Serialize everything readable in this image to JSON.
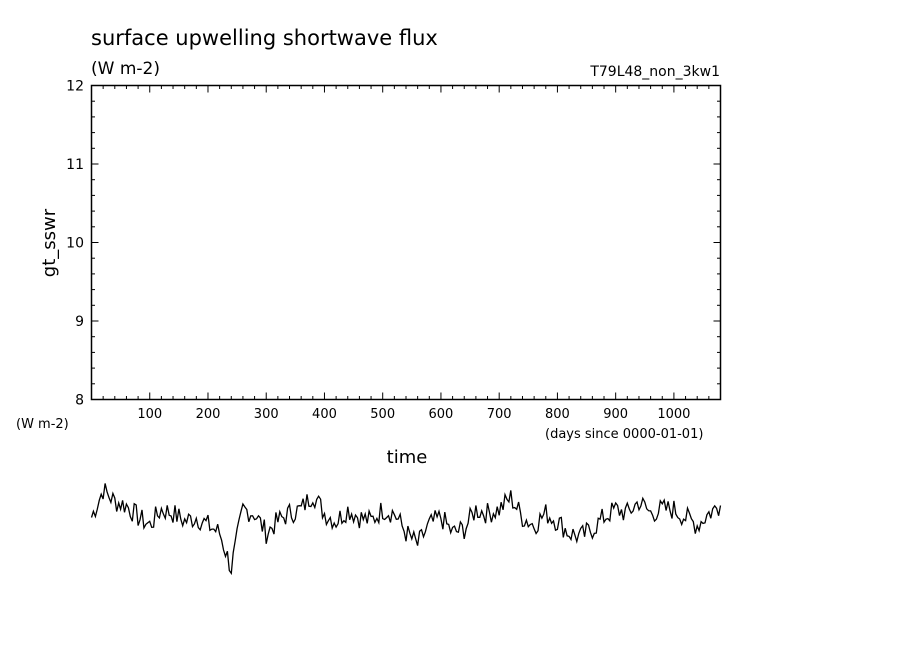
{
  "chart_data": {
    "type": "line",
    "title": "surface upwelling shortwave flux",
    "units": "(W m-2)",
    "experiment": "T79L48_non_3kw1",
    "ylabel": "gt_sswr",
    "xlabel": "time",
    "x_units": "(days since 0000-01-01)",
    "y_bottom_units": "(W m-2)",
    "xlim": [
      0,
      1080
    ],
    "ylim": [
      8,
      12
    ],
    "x_ticks": [
      100,
      200,
      300,
      400,
      500,
      600,
      700,
      800,
      900,
      1000
    ],
    "x_tick_labels": [
      "100",
      "200",
      "300",
      "400",
      "500",
      "600",
      "700",
      "800",
      "900",
      "1000"
    ],
    "y_ticks": [
      8,
      9,
      10,
      11,
      12
    ],
    "y_tick_labels": [
      "8",
      "9",
      "10",
      "11",
      "12"
    ],
    "grid": false,
    "series": [
      {
        "values": [
          [
            0,
            6.5
          ],
          [
            20,
            6.85
          ],
          [
            40,
            6.7
          ],
          [
            60,
            6.65
          ],
          [
            80,
            6.5
          ],
          [
            100,
            6.4
          ],
          [
            120,
            6.6
          ],
          [
            140,
            6.55
          ],
          [
            160,
            6.45
          ],
          [
            180,
            6.5
          ],
          [
            200,
            6.4
          ],
          [
            220,
            6.3
          ],
          [
            240,
            5.85
          ],
          [
            260,
            6.6
          ],
          [
            280,
            6.55
          ],
          [
            300,
            6.3
          ],
          [
            320,
            6.45
          ],
          [
            340,
            6.55
          ],
          [
            360,
            6.6
          ],
          [
            380,
            6.8
          ],
          [
            400,
            6.55
          ],
          [
            420,
            6.45
          ],
          [
            440,
            6.6
          ],
          [
            460,
            6.5
          ],
          [
            480,
            6.45
          ],
          [
            500,
            6.6
          ],
          [
            520,
            6.55
          ],
          [
            540,
            6.3
          ],
          [
            560,
            6.15
          ],
          [
            580,
            6.4
          ],
          [
            600,
            6.5
          ],
          [
            620,
            6.3
          ],
          [
            640,
            6.35
          ],
          [
            660,
            6.6
          ],
          [
            680,
            6.55
          ],
          [
            700,
            6.6
          ],
          [
            720,
            6.75
          ],
          [
            740,
            6.5
          ],
          [
            760,
            6.4
          ],
          [
            780,
            6.55
          ],
          [
            800,
            6.45
          ],
          [
            820,
            6.3
          ],
          [
            840,
            6.25
          ],
          [
            860,
            6.35
          ],
          [
            880,
            6.5
          ],
          [
            900,
            6.6
          ],
          [
            920,
            6.55
          ],
          [
            940,
            6.7
          ],
          [
            960,
            6.55
          ],
          [
            980,
            6.6
          ],
          [
            1000,
            6.6
          ],
          [
            1020,
            6.5
          ],
          [
            1040,
            6.4
          ],
          [
            1060,
            6.55
          ],
          [
            1080,
            6.65
          ]
        ]
      }
    ]
  }
}
